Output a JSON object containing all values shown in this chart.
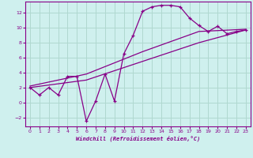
{
  "xlabel": "Windchill (Refroidissement éolien,°C)",
  "background_color": "#cff0ee",
  "grid_color": "#b0d8d0",
  "line_color": "#880088",
  "x_min": -0.5,
  "x_max": 23.5,
  "y_min": -3.2,
  "y_max": 13.5,
  "x_ticks": [
    0,
    1,
    2,
    3,
    4,
    5,
    6,
    7,
    8,
    9,
    10,
    11,
    12,
    13,
    14,
    15,
    16,
    17,
    18,
    19,
    20,
    21,
    22,
    23
  ],
  "y_ticks": [
    -2,
    0,
    2,
    4,
    6,
    8,
    10,
    12
  ],
  "line1_x": [
    0,
    1,
    2,
    3,
    4,
    5,
    6,
    7,
    8,
    9,
    10,
    11,
    12,
    13,
    14,
    15,
    16,
    17,
    18,
    19,
    20,
    21,
    22,
    23
  ],
  "line1_y": [
    2.0,
    1.0,
    2.0,
    1.0,
    3.5,
    3.5,
    -2.5,
    0.2,
    3.8,
    0.2,
    6.5,
    9.0,
    12.2,
    12.8,
    13.0,
    13.0,
    12.8,
    11.3,
    10.3,
    9.5,
    10.2,
    9.2,
    9.5,
    9.7
  ],
  "line2_x": [
    0,
    6,
    12,
    18,
    23
  ],
  "line2_y": [
    2.2,
    3.8,
    6.8,
    9.5,
    9.8
  ],
  "line3_x": [
    0,
    6,
    12,
    18,
    23
  ],
  "line3_y": [
    2.0,
    3.0,
    5.5,
    8.0,
    9.7
  ]
}
